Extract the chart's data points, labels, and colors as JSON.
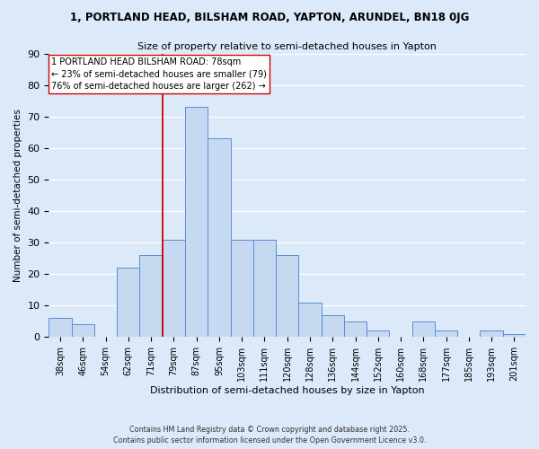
{
  "title_line1": "1, PORTLAND HEAD, BILSHAM ROAD, YAPTON, ARUNDEL, BN18 0JG",
  "title_line2": "Size of property relative to semi-detached houses in Yapton",
  "xlabel": "Distribution of semi-detached houses by size in Yapton",
  "ylabel": "Number of semi-detached properties",
  "footnote1": "Contains HM Land Registry data © Crown copyright and database right 2025.",
  "footnote2": "Contains public sector information licensed under the Open Government Licence v3.0.",
  "bar_labels": [
    "38sqm",
    "46sqm",
    "54sqm",
    "62sqm",
    "71sqm",
    "79sqm",
    "87sqm",
    "95sqm",
    "103sqm",
    "111sqm",
    "120sqm",
    "128sqm",
    "136sqm",
    "144sqm",
    "152sqm",
    "160sqm",
    "168sqm",
    "177sqm",
    "185sqm",
    "193sqm",
    "201sqm"
  ],
  "bar_values": [
    6,
    4,
    0,
    22,
    26,
    31,
    73,
    63,
    31,
    31,
    26,
    11,
    7,
    5,
    2,
    0,
    5,
    2,
    0,
    2,
    1
  ],
  "bar_color": "#c6d9f0",
  "bar_edge_color": "#5b8dd9",
  "background_color": "#dce9f8",
  "grid_color": "#ffffff",
  "annotation_line1": "1 PORTLAND HEAD BILSHAM ROAD: 78sqm",
  "annotation_line2": "← 23% of semi-detached houses are smaller (79)",
  "annotation_line3": "76% of semi-detached houses are larger (262) →",
  "vline_color": "#cc0000",
  "vline_index": 5,
  "ylim": [
    0,
    90
  ],
  "yticks": [
    0,
    10,
    20,
    30,
    40,
    50,
    60,
    70,
    80,
    90
  ]
}
